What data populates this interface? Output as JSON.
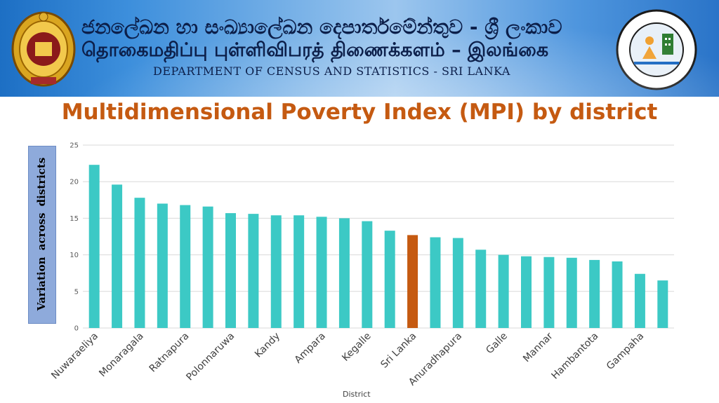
{
  "banner": {
    "sinhala": "ජනලේඛන හා සංඛ්‍යාලේඛන දෙපාර්තමේන්තුව - ශ්‍රී ලංකාව",
    "tamil": "தொகைமதிப்பு புள்ளிவிபரத் திணைக்களம் – இலங்கை",
    "english": "DEPARTMENT OF CENSUS AND STATISTICS - SRI LANKA"
  },
  "colors": {
    "bar": "#3cc9c5",
    "highlight": "#c55a11",
    "title": "#c55a11"
  },
  "chart_data": {
    "type": "bar",
    "title": "Multidimensional Poverty Index (MPI) by district",
    "xlabel": "District",
    "ylabel": "Variation  across  districts",
    "ylim": [
      0,
      25
    ],
    "yticks": [
      0,
      5,
      10,
      15,
      20,
      25
    ],
    "grid": true,
    "highlight": "Sri Lanka",
    "categories": [
      "Nuwaraeliya",
      "",
      "Monaragala",
      "",
      "Ratnapura",
      "",
      "Polonnaruwa",
      "",
      "Kandy",
      "",
      "Ampara",
      "",
      "Kegalle",
      "",
      "Sri Lanka",
      "",
      "Anuradhapura",
      "",
      "Galle",
      "",
      "Mannar",
      "",
      "Hambantota",
      "",
      "Gampaha",
      ""
    ],
    "values": [
      22.3,
      19.6,
      17.8,
      17.0,
      16.8,
      16.6,
      15.7,
      15.6,
      15.4,
      15.4,
      15.2,
      15.0,
      14.6,
      13.3,
      12.7,
      12.4,
      12.3,
      10.7,
      10.0,
      9.8,
      9.7,
      9.6,
      9.3,
      9.1,
      7.4,
      6.5
    ]
  }
}
